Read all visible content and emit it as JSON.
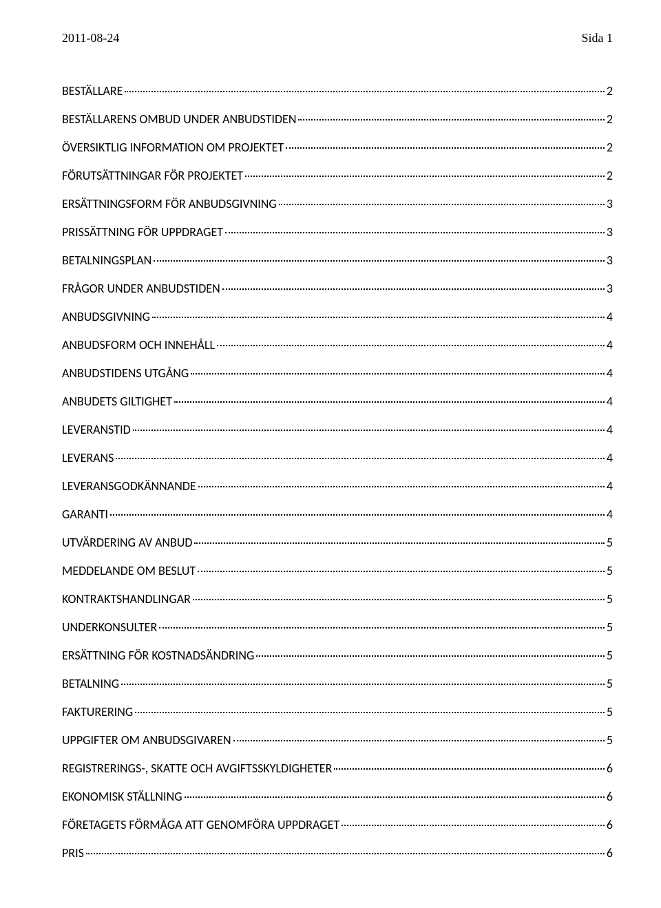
{
  "header": {
    "date": "2011-08-24",
    "page_label": "Sida 1"
  },
  "toc": {
    "entries": [
      {
        "title": "BESTÄLLARE",
        "page": "2"
      },
      {
        "title": "BESTÄLLARENS OMBUD UNDER ANBUDSTIDEN",
        "page": "2"
      },
      {
        "title": "ÖVERSIKTLIG INFORMATION OM PROJEKTET",
        "page": "2"
      },
      {
        "title": "FÖRUTSÄTTNINGAR FÖR PROJEKTET",
        "page": "2"
      },
      {
        "title": "ERSÄTTNINGSFORM FÖR ANBUDSGIVNING",
        "page": "3"
      },
      {
        "title": "PRISSÄTTNING FÖR UPPDRAGET",
        "page": "3"
      },
      {
        "title": "BETALNINGSPLAN",
        "page": "3"
      },
      {
        "title": "FRÅGOR UNDER ANBUDSTIDEN",
        "page": "3"
      },
      {
        "title": "ANBUDSGIVNING",
        "page": "4"
      },
      {
        "title": "ANBUDSFORM OCH INNEHÅLL",
        "page": "4"
      },
      {
        "title": "ANBUDSTIDENS UTGÅNG",
        "page": "4"
      },
      {
        "title": "ANBUDETS GILTIGHET",
        "page": "4"
      },
      {
        "title": "LEVERANSTID",
        "page": "4"
      },
      {
        "title": "LEVERANS",
        "page": "4"
      },
      {
        "title": "LEVERANSGODKÄNNANDE",
        "page": "4"
      },
      {
        "title": "GARANTI",
        "page": "4"
      },
      {
        "title": "UTVÄRDERING AV ANBUD",
        "page": "5"
      },
      {
        "title": "MEDDELANDE OM BESLUT",
        "page": "5"
      },
      {
        "title": "KONTRAKTSHANDLINGAR",
        "page": "5"
      },
      {
        "title": "UNDERKONSULTER",
        "page": "5"
      },
      {
        "title": "ERSÄTTNING FÖR KOSTNADSÄNDRING",
        "page": "5"
      },
      {
        "title": "BETALNING",
        "page": "5"
      },
      {
        "title": "FAKTURERING",
        "page": "5"
      },
      {
        "title": "UPPGIFTER OM ANBUDSGIVAREN",
        "page": "5"
      },
      {
        "title": "REGISTRERINGS-, SKATTE OCH AVGIFTSSKYLDIGHETER",
        "page": "6"
      },
      {
        "title": "EKONOMISK STÄLLNING",
        "page": "6"
      },
      {
        "title": "FÖRETAGETS FÖRMÅGA ATT GENOMFÖRA UPPDRAGET",
        "page": "6"
      },
      {
        "title": "PRIS",
        "page": "6"
      }
    ]
  }
}
